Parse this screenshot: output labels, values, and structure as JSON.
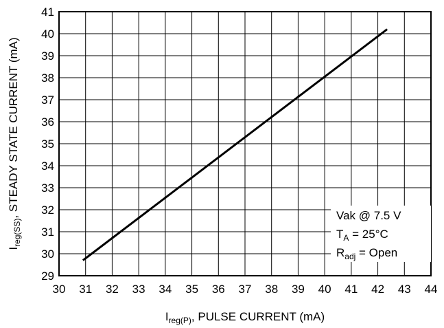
{
  "chart_data": {
    "type": "line",
    "title": "",
    "xlabel": {
      "main": "I",
      "sub": "reg(P)",
      "rest": ", PULSE CURRENT (mA)"
    },
    "ylabel": {
      "main": "I",
      "sub": "reg(SS)",
      "rest": ", STEADY STATE CURRENT (mA)"
    },
    "xlim": [
      30,
      44
    ],
    "ylim": [
      29,
      41
    ],
    "x_ticks": [
      "30",
      "31",
      "32",
      "33",
      "34",
      "35",
      "36",
      "37",
      "38",
      "39",
      "40",
      "41",
      "42",
      "43",
      "44"
    ],
    "y_ticks": [
      "29",
      "30",
      "31",
      "32",
      "33",
      "34",
      "35",
      "36",
      "37",
      "38",
      "39",
      "40",
      "41"
    ],
    "grid": true,
    "series": [
      {
        "x": [
          30.9,
          42.35
        ],
        "y": [
          29.7,
          40.2
        ]
      }
    ],
    "annotation": [
      {
        "main": "Vak @ 7.5 V",
        "sub": "",
        "rest": ""
      },
      {
        "main": "T",
        "sub": "A",
        "rest": " = 25°C"
      },
      {
        "main": "R",
        "sub": "adj",
        "rest": " = Open"
      }
    ]
  }
}
